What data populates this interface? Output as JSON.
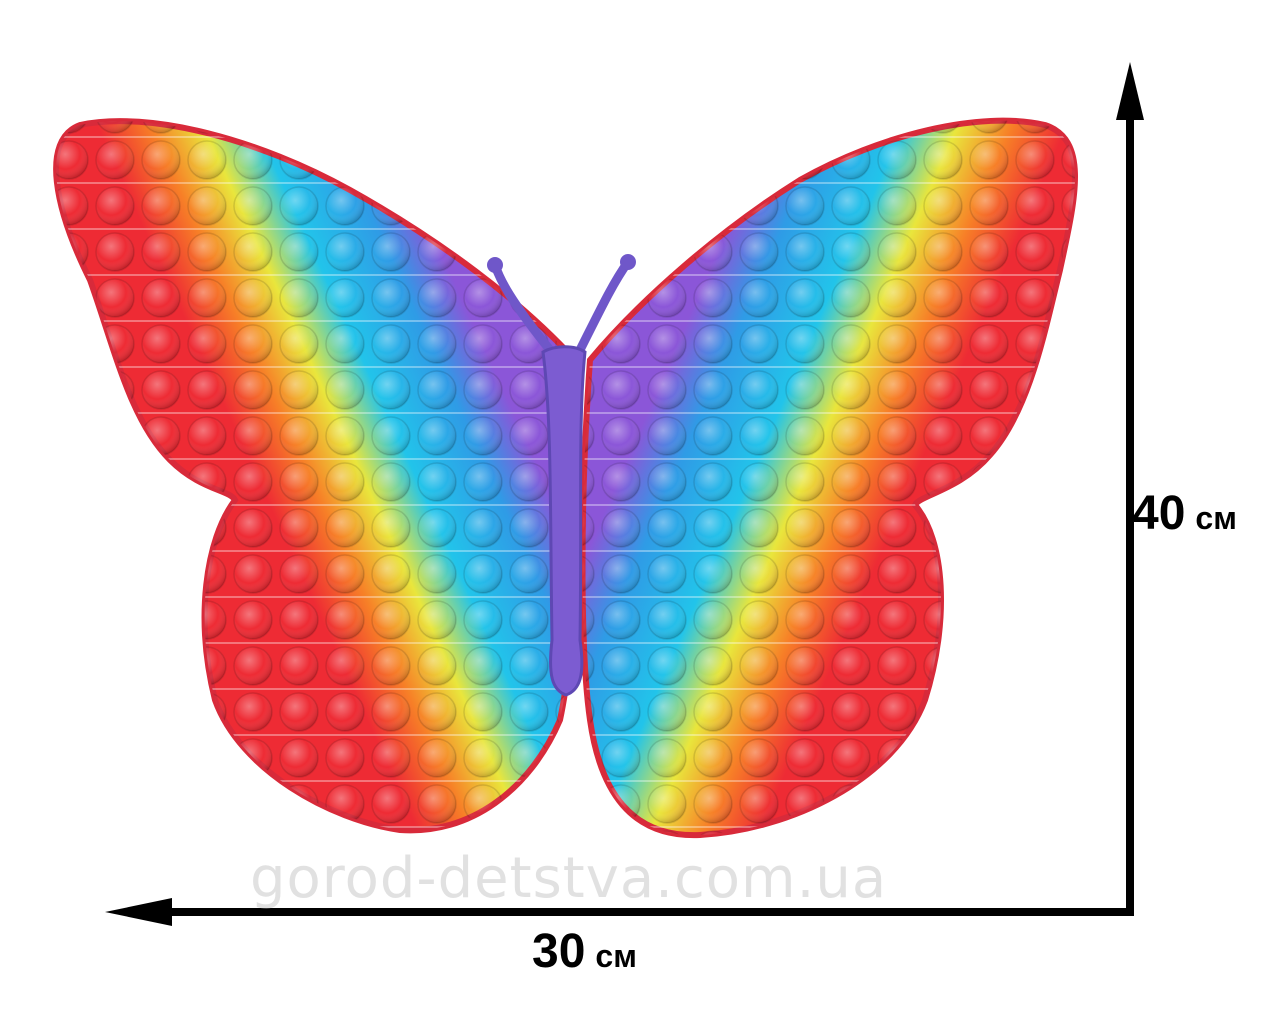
{
  "image": {
    "subject": "butterfly-pop-it-toy",
    "dimensions": {
      "height_value": "40",
      "height_unit": "см",
      "width_value": "30",
      "width_unit": "см"
    },
    "watermark": "gorod-detstva.com.ua",
    "colors": {
      "red": "#ee2b34",
      "orange": "#f77f27",
      "yellow": "#e9e63c",
      "cyan": "#22c4ea",
      "blue": "#2f9be6",
      "purple": "#8b56d8",
      "body": "#7c5cd1",
      "arrow": "#000000"
    }
  }
}
